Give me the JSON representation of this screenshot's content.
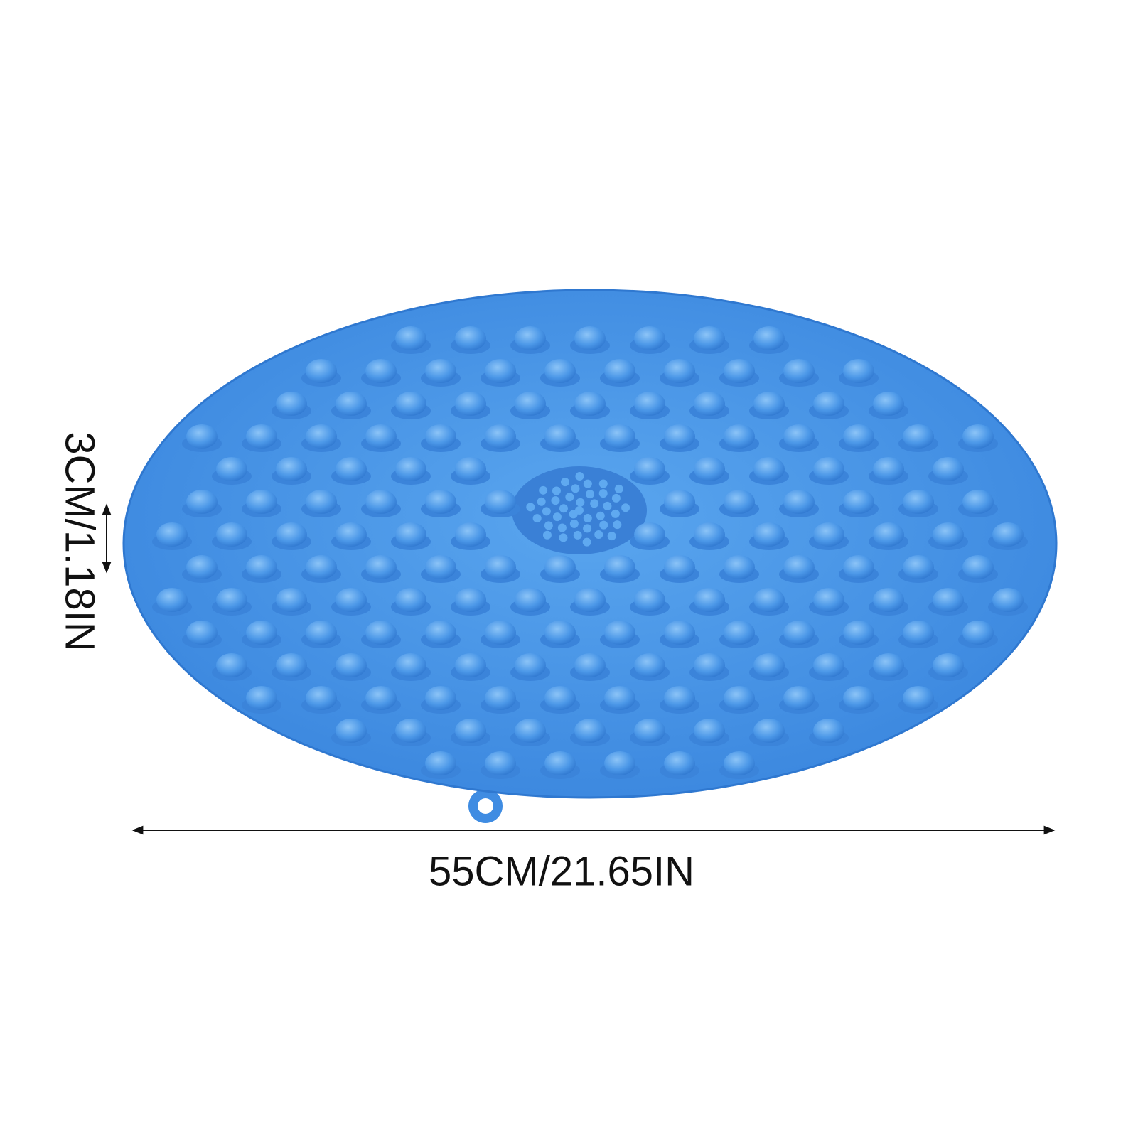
{
  "dimensions": {
    "height": "3CM/1.18IN",
    "width": "55CM/21.65IN"
  }
}
